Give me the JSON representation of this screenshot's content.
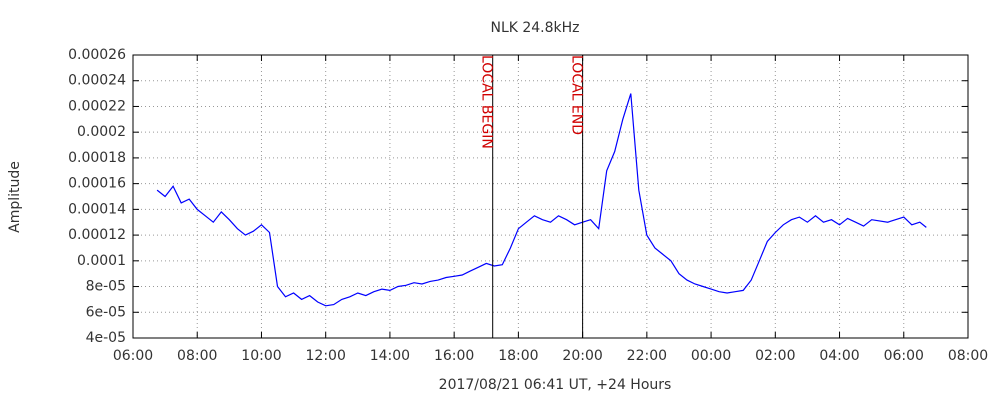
{
  "chart_data": {
    "type": "line",
    "title": "NLK 24.8kHz",
    "x_label": "2017/08/21 06:41 UT, +24 Hours",
    "y_label": "Amplitude",
    "color": "#0000ff",
    "grid": true,
    "xlim": [
      6,
      32
    ],
    "xticks": [
      {
        "value": 6,
        "label": "06:00"
      },
      {
        "value": 8,
        "label": "08:00"
      },
      {
        "value": 10,
        "label": "10:00"
      },
      {
        "value": 12,
        "label": "12:00"
      },
      {
        "value": 14,
        "label": "14:00"
      },
      {
        "value": 16,
        "label": "16:00"
      },
      {
        "value": 18,
        "label": "18:00"
      },
      {
        "value": 20,
        "label": "20:00"
      },
      {
        "value": 22,
        "label": "22:00"
      },
      {
        "value": 24,
        "label": "00:00"
      },
      {
        "value": 26,
        "label": "02:00"
      },
      {
        "value": 28,
        "label": "04:00"
      },
      {
        "value": 30,
        "label": "06:00"
      },
      {
        "value": 32,
        "label": "08:00"
      }
    ],
    "ylim": [
      4e-05,
      0.00026
    ],
    "yticks": [
      {
        "value": 4e-05,
        "label": "4e-05"
      },
      {
        "value": 6e-05,
        "label": "6e-05"
      },
      {
        "value": 8e-05,
        "label": "8e-05"
      },
      0.0001,
      0.00012,
      0.00014,
      0.00016,
      0.00018,
      0.0002,
      0.00022,
      0.00024,
      0.00026
    ],
    "annotations": [
      {
        "text": "LOCAL BEGIN",
        "x": 17.2
      },
      {
        "text": "LOCAL END",
        "x": 20.0
      }
    ],
    "x": [
      6.75,
      7.0,
      7.25,
      7.5,
      7.75,
      8.0,
      8.25,
      8.5,
      8.75,
      9.0,
      9.25,
      9.5,
      9.75,
      10.0,
      10.25,
      10.5,
      10.75,
      11.0,
      11.25,
      11.5,
      11.75,
      12.0,
      12.25,
      12.5,
      12.75,
      13.0,
      13.25,
      13.5,
      13.75,
      14.0,
      14.25,
      14.5,
      14.75,
      15.0,
      15.25,
      15.5,
      15.75,
      16.0,
      16.25,
      16.5,
      16.75,
      17.0,
      17.25,
      17.5,
      17.75,
      18.0,
      18.25,
      18.5,
      18.75,
      19.0,
      19.25,
      19.5,
      19.75,
      20.0,
      20.25,
      20.5,
      20.75,
      21.0,
      21.25,
      21.5,
      21.75,
      22.0,
      22.25,
      22.5,
      22.75,
      23.0,
      23.25,
      23.5,
      23.75,
      24.0,
      24.25,
      24.5,
      24.75,
      25.0,
      25.25,
      25.5,
      25.75,
      26.0,
      26.25,
      26.5,
      26.75,
      27.0,
      27.25,
      27.5,
      27.75,
      28.0,
      28.25,
      28.5,
      28.75,
      29.0,
      29.5,
      30.0,
      30.25,
      30.5,
      30.7
    ],
    "values": [
      0.000155,
      0.00015,
      0.000158,
      0.000145,
      0.000148,
      0.00014,
      0.000135,
      0.00013,
      0.000138,
      0.000132,
      0.000125,
      0.00012,
      0.000123,
      0.000128,
      0.000122,
      8e-05,
      7.2e-05,
      7.5e-05,
      7e-05,
      7.3e-05,
      6.8e-05,
      6.5e-05,
      6.6e-05,
      7e-05,
      7.2e-05,
      7.5e-05,
      7.3e-05,
      7.6e-05,
      7.8e-05,
      7.7e-05,
      8e-05,
      8.1e-05,
      8.3e-05,
      8.2e-05,
      8.4e-05,
      8.5e-05,
      8.7e-05,
      8.8e-05,
      8.9e-05,
      9.2e-05,
      9.5e-05,
      9.8e-05,
      9.6e-05,
      9.7e-05,
      0.00011,
      0.000125,
      0.00013,
      0.000135,
      0.000132,
      0.00013,
      0.000135,
      0.000132,
      0.000128,
      0.00013,
      0.000132,
      0.000125,
      0.00017,
      0.000185,
      0.00021,
      0.00023,
      0.000155,
      0.00012,
      0.00011,
      0.000105,
      0.0001,
      9e-05,
      8.5e-05,
      8.2e-05,
      8e-05,
      7.8e-05,
      7.6e-05,
      7.5e-05,
      7.6e-05,
      7.7e-05,
      8.5e-05,
      0.0001,
      0.000115,
      0.000122,
      0.000128,
      0.000132,
      0.000134,
      0.00013,
      0.000135,
      0.00013,
      0.000132,
      0.000128,
      0.000133,
      0.00013,
      0.000127,
      0.000132,
      0.00013,
      0.000134,
      0.000128,
      0.00013,
      0.000126
    ]
  }
}
